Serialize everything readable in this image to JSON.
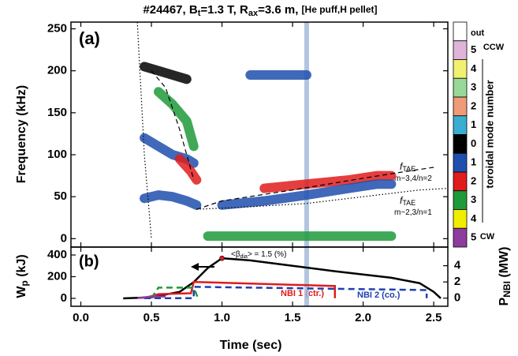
{
  "chart_data": {
    "type": "spectrogram",
    "title": [
      "#24467, B",
      "t",
      "=1.3 T, R",
      "ax",
      "=3.6 m, ",
      "[He puff,H pellet]"
    ],
    "panel_a_label": "(a)",
    "panel_b_label": "(b)",
    "x_label": "Time (sec)",
    "y_label": "Frequency (kHz)",
    "y_label_b": [
      "W",
      "p",
      " (kJ)"
    ],
    "y2_label_b": [
      "P",
      "NBI",
      " (MW)"
    ],
    "xlim": [
      -0.07,
      2.6
    ],
    "xticks": [
      {
        "value": 0,
        "label": "0.0"
      },
      {
        "value": 0.5,
        "label": "0.5"
      },
      {
        "value": 1,
        "label": "1.0"
      },
      {
        "value": 1.5,
        "label": "1.5"
      },
      {
        "value": 2,
        "label": "2.0"
      },
      {
        "value": 2.5,
        "label": "2.5"
      }
    ],
    "ylim": [
      -10,
      258
    ],
    "yticks": [
      0,
      50,
      100,
      150,
      200,
      250
    ],
    "ylim_b": [
      -73,
      473
    ],
    "yticks_b": [
      0,
      200,
      400
    ],
    "y2lim": [
      -1,
      6.3
    ],
    "y2ticks": [
      0,
      2,
      4
    ],
    "marker_time": 1.6,
    "colorbar": {
      "title": "toroidal mode number",
      "top_label": "CCW",
      "bottom_label": "CW",
      "entries": [
        {
          "label": "out",
          "color": "#ffffff"
        },
        {
          "label": "5",
          "color": "#e0b4d8"
        },
        {
          "label": "4",
          "color": "#f2f070"
        },
        {
          "label": "3",
          "color": "#98d898"
        },
        {
          "label": "2",
          "color": "#f09a78"
        },
        {
          "label": "1",
          "color": "#3aaed0"
        },
        {
          "label": "0",
          "color": "#000000"
        },
        {
          "label": "1",
          "color": "#1f4fae"
        },
        {
          "label": "2",
          "color": "#e01c1c"
        },
        {
          "label": "3",
          "color": "#1f9a3a"
        },
        {
          "label": "4",
          "color": "#f0ee00"
        },
        {
          "label": "5",
          "color": "#8e3c9e"
        }
      ]
    },
    "series": [
      {
        "color": "#1f4fae",
        "x": [
          0.45,
          0.55,
          0.65,
          0.75,
          0.82
        ],
        "values": [
          48,
          52,
          50,
          45,
          40
        ]
      },
      {
        "color": "#1f4fae",
        "x": [
          0.45,
          0.55,
          0.65,
          0.75,
          0.8
        ],
        "values": [
          120,
          110,
          100,
          95,
          90
        ]
      },
      {
        "color": "#000000",
        "x": [
          0.45,
          0.55,
          0.65,
          0.75
        ],
        "values": [
          205,
          200,
          195,
          190
        ]
      },
      {
        "color": "#1f9a3a",
        "x": [
          0.55,
          0.65,
          0.75,
          0.8
        ],
        "values": [
          175,
          160,
          140,
          110
        ]
      },
      {
        "color": "#e01c1c",
        "x": [
          0.7,
          0.78,
          0.82
        ],
        "values": [
          95,
          80,
          70
        ]
      },
      {
        "color": "#e01c1c",
        "x": [
          1.3,
          1.6,
          1.9,
          2.1,
          2.2
        ],
        "values": [
          60,
          65,
          70,
          75,
          75
        ]
      },
      {
        "color": "#1f4fae",
        "x": [
          1.0,
          1.3,
          1.6,
          1.9,
          2.1,
          2.2
        ],
        "values": [
          40,
          45,
          52,
          60,
          65,
          65
        ]
      },
      {
        "color": "#1f4fae",
        "x": [
          1.2,
          1.6
        ],
        "values": [
          195,
          195
        ]
      },
      {
        "color": "#1f9a3a",
        "x": [
          0.9,
          2.2
        ],
        "values": [
          3,
          3
        ]
      }
    ],
    "curves": [
      {
        "style": "dashed",
        "x": [
          0.82,
          1.0,
          1.5,
          2.0,
          2.3,
          2.5
        ],
        "values": [
          35,
          45,
          58,
          72,
          80,
          85
        ]
      },
      {
        "style": "dashed",
        "x": [
          0.5,
          0.6,
          0.7,
          0.8
        ],
        "values": [
          200,
          180,
          130,
          70
        ]
      },
      {
        "style": "dotted",
        "x": [
          0.82,
          1.2,
          1.6,
          2.0,
          2.4,
          2.6
        ],
        "values": [
          35,
          38,
          42,
          50,
          58,
          60
        ]
      },
      {
        "style": "dotted",
        "x": [
          0.4,
          0.45,
          0.5
        ],
        "values": [
          258,
          100,
          0
        ]
      }
    ],
    "annotations": {
      "tae_upper": [
        "f",
        "TAE",
        "m~3,4/n=2"
      ],
      "tae_lower": [
        "f",
        "TAE",
        "m~2,3/n=1"
      ],
      "beta": [
        "<β",
        "dia",
        "> = 1.5 (%)"
      ],
      "nbi1": "NBI 1 (ctr.)",
      "nbi2": "NBI 2 (co.)"
    },
    "series_b": [
      {
        "color": "#000000",
        "style": "solid",
        "x": [
          0.3,
          0.5,
          0.7,
          0.8,
          0.9,
          1.0,
          1.2,
          1.5,
          1.8,
          2.0,
          2.2,
          2.4,
          2.5,
          2.55
        ],
        "values": [
          0,
          10,
          60,
          150,
          280,
          370,
          350,
          300,
          250,
          220,
          190,
          140,
          60,
          0
        ]
      },
      {
        "color": "#e01c1c",
        "style": "solid",
        "axis": "y2",
        "x": [
          0.45,
          0.55,
          0.78,
          0.8,
          1.8,
          1.8
        ],
        "values": [
          0,
          0.5,
          0.6,
          2.0,
          1.5,
          0
        ]
      },
      {
        "color": "#1f3fae",
        "style": "dashed",
        "axis": "y2",
        "x": [
          0.45,
          0.8,
          0.8,
          2.45,
          2.45
        ],
        "values": [
          0,
          0,
          1.4,
          1.0,
          0
        ]
      },
      {
        "color": "#1f9a3a",
        "style": "dashed",
        "axis": "y2",
        "x": [
          0.5,
          0.55,
          0.8,
          0.83
        ],
        "values": [
          0,
          1.3,
          1.3,
          0
        ]
      },
      {
        "color": "#8e3c9e",
        "style": "solid",
        "axis": "y2",
        "x": [
          0.4,
          0.5,
          0.6
        ],
        "values": [
          0,
          0.2,
          0.2
        ]
      }
    ],
    "beta_point": {
      "x": 1.0,
      "value": 370,
      "color": "#e01c1c"
    }
  }
}
